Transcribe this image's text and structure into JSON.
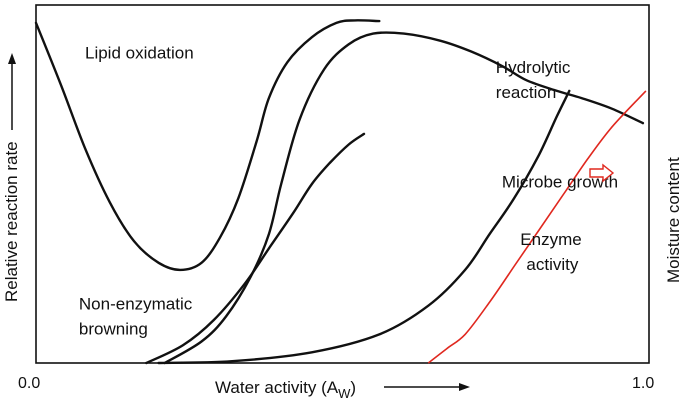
{
  "chart_data": {
    "type": "line",
    "xlabel": "Water activity (A",
    "xlabel_sub": "W",
    "xlabel_suffix": ")",
    "ylabel": "Relative reaction rate",
    "y2label": "Moisture content",
    "xlim": [
      0,
      1
    ],
    "ylim": [
      0,
      1
    ],
    "x_ticks": [
      "0.0",
      "1.0"
    ],
    "y_ticks_shown": false,
    "grid": false,
    "legend": "none",
    "series": [
      {
        "name": "Lipid oxidation",
        "points": [
          [
            0.0,
            0.95
          ],
          [
            0.04,
            0.78
          ],
          [
            0.08,
            0.6
          ],
          [
            0.12,
            0.45
          ],
          [
            0.16,
            0.34
          ],
          [
            0.2,
            0.28
          ],
          [
            0.235,
            0.26
          ],
          [
            0.27,
            0.28
          ],
          [
            0.3,
            0.35
          ],
          [
            0.33,
            0.46
          ],
          [
            0.36,
            0.62
          ],
          [
            0.38,
            0.74
          ],
          [
            0.41,
            0.84
          ],
          [
            0.45,
            0.91
          ],
          [
            0.49,
            0.95
          ],
          [
            0.52,
            0.957
          ],
          [
            0.56,
            0.955
          ]
        ]
      },
      {
        "name": "Non-enzymatic browning",
        "points": [
          [
            0.21,
            0.0
          ],
          [
            0.27,
            0.06
          ],
          [
            0.31,
            0.13
          ],
          [
            0.35,
            0.24
          ],
          [
            0.38,
            0.36
          ],
          [
            0.4,
            0.5
          ],
          [
            0.43,
            0.68
          ],
          [
            0.47,
            0.82
          ],
          [
            0.51,
            0.89
          ],
          [
            0.55,
            0.92
          ],
          [
            0.6,
            0.92
          ],
          [
            0.66,
            0.9
          ],
          [
            0.71,
            0.87
          ],
          [
            0.76,
            0.83
          ],
          [
            0.8,
            0.79
          ],
          [
            0.85,
            0.76
          ],
          [
            0.89,
            0.74
          ],
          [
            0.94,
            0.71
          ],
          [
            0.99,
            0.67
          ]
        ]
      },
      {
        "name": "Hydrolytic reaction",
        "points": [
          [
            0.18,
            0.0
          ],
          [
            0.24,
            0.05
          ],
          [
            0.29,
            0.12
          ],
          [
            0.34,
            0.22
          ],
          [
            0.38,
            0.32
          ],
          [
            0.42,
            0.42
          ],
          [
            0.45,
            0.5
          ],
          [
            0.48,
            0.56
          ],
          [
            0.51,
            0.61
          ],
          [
            0.535,
            0.64
          ]
        ]
      },
      {
        "name": "Enzyme activity",
        "points": [
          [
            0.2,
            0.0
          ],
          [
            0.32,
            0.005
          ],
          [
            0.45,
            0.03
          ],
          [
            0.56,
            0.08
          ],
          [
            0.64,
            0.16
          ],
          [
            0.7,
            0.26
          ],
          [
            0.74,
            0.36
          ],
          [
            0.78,
            0.46
          ],
          [
            0.82,
            0.58
          ],
          [
            0.85,
            0.69
          ],
          [
            0.87,
            0.76
          ]
        ]
      }
    ],
    "moisture_content": {
      "points": [
        [
          0.64,
          0.0
        ],
        [
          0.67,
          0.04
        ],
        [
          0.7,
          0.08
        ],
        [
          0.74,
          0.17
        ],
        [
          0.78,
          0.27
        ],
        [
          0.82,
          0.37
        ],
        [
          0.86,
          0.47
        ],
        [
          0.9,
          0.57
        ],
        [
          0.94,
          0.66
        ],
        [
          0.995,
          0.76
        ]
      ],
      "color": "#e0281f"
    },
    "annotations": [
      {
        "text": "Lipid oxidation",
        "x": 0.08,
        "y": 0.85
      },
      {
        "text": "Hydrolytic",
        "x": 0.75,
        "y": 0.81
      },
      {
        "text": "reaction",
        "x": 0.75,
        "y": 0.74
      },
      {
        "text": "Microbe growth",
        "x": 0.76,
        "y": 0.49
      },
      {
        "text": "Enzyme",
        "x": 0.79,
        "y": 0.33
      },
      {
        "text": "activity",
        "x": 0.8,
        "y": 0.26
      },
      {
        "text": "Non-enzymatic",
        "x": 0.07,
        "y": 0.15
      },
      {
        "text": "browning",
        "x": 0.07,
        "y": 0.08
      }
    ],
    "colors": {
      "curves": "#111111",
      "moisture_line": "#e0281f",
      "moisture_arrow": "#e0281f"
    }
  }
}
